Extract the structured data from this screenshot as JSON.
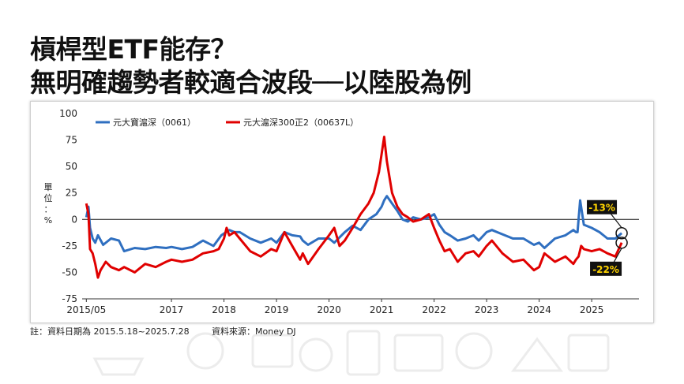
{
  "title_line1": "槓桿型ETF能存？",
  "title_line2": "無明確趨勢者較適合波段──以陸股為例",
  "notes": {
    "date_range": "註：資料日期為 2015.5.18~2025.7.28",
    "source": "資料來源：Money DJ"
  },
  "colors": {
    "series1": "#2f6fc0",
    "series2": "#e00000",
    "callout_bg": "#111111",
    "callout_text": "#ffd400"
  },
  "callouts": {
    "blue": "-13%",
    "red": "-22%"
  },
  "chart_data": {
    "type": "line",
    "ylabel": "單位：%",
    "ylim": [
      -75,
      100
    ],
    "yticks": [
      100,
      75,
      50,
      25,
      0,
      -25,
      -50,
      -75
    ],
    "xlim": [
      2015.3,
      2025.9
    ],
    "xticks": [
      {
        "value": 2015.38,
        "label": "2015/05"
      },
      {
        "value": 2017.0,
        "label": "2017"
      },
      {
        "value": 2018.0,
        "label": "2018"
      },
      {
        "value": 2019.0,
        "label": "2019"
      },
      {
        "value": 2020.0,
        "label": "2020"
      },
      {
        "value": 2021.0,
        "label": "2021"
      },
      {
        "value": 2022.0,
        "label": "2022"
      },
      {
        "value": 2023.0,
        "label": "2023"
      },
      {
        "value": 2024.0,
        "label": "2024"
      },
      {
        "value": 2025.0,
        "label": "2025"
      }
    ],
    "zero_line": true,
    "legend": "top-left",
    "series": [
      {
        "name": "元大寶滬深（0061）",
        "color": "#2f6fc0",
        "x": [
          2015.38,
          2015.42,
          2015.45,
          2015.5,
          2015.55,
          2015.6,
          2015.7,
          2015.85,
          2016.0,
          2016.1,
          2016.3,
          2016.5,
          2016.7,
          2016.9,
          2017.0,
          2017.2,
          2017.4,
          2017.6,
          2017.8,
          2017.95,
          2018.1,
          2018.2,
          2018.3,
          2018.5,
          2018.7,
          2018.9,
          2019.0,
          2019.15,
          2019.3,
          2019.45,
          2019.5,
          2019.6,
          2019.8,
          2020.0,
          2020.1,
          2020.2,
          2020.3,
          2020.45,
          2020.6,
          2020.75,
          2020.9,
          2021.0,
          2021.05,
          2021.1,
          2021.2,
          2021.3,
          2021.4,
          2021.5,
          2021.6,
          2021.75,
          2021.9,
          2022.0,
          2022.1,
          2022.2,
          2022.3,
          2022.45,
          2022.6,
          2022.75,
          2022.85,
          2023.0,
          2023.1,
          2023.3,
          2023.5,
          2023.7,
          2023.9,
          2024.0,
          2024.1,
          2024.3,
          2024.5,
          2024.65,
          2024.7,
          2024.73,
          2024.78,
          2024.85,
          2025.0,
          2025.15,
          2025.3,
          2025.45,
          2025.57
        ],
        "values": [
          2,
          12,
          -8,
          -18,
          -22,
          -15,
          -24,
          -18,
          -20,
          -30,
          -27,
          -28,
          -26,
          -27,
          -26,
          -28,
          -26,
          -20,
          -25,
          -15,
          -10,
          -12,
          -12,
          -18,
          -22,
          -18,
          -22,
          -12,
          -15,
          -16,
          -20,
          -24,
          -18,
          -18,
          -22,
          -17,
          -12,
          -6,
          -10,
          0,
          5,
          12,
          18,
          22,
          15,
          8,
          0,
          -2,
          2,
          0,
          2,
          5,
          -5,
          -12,
          -15,
          -20,
          -18,
          -15,
          -20,
          -12,
          -10,
          -14,
          -18,
          -18,
          -24,
          -22,
          -27,
          -18,
          -15,
          -10,
          -12,
          -12,
          18,
          -5,
          -8,
          -12,
          -18,
          -18,
          -13
        ]
      },
      {
        "name": "元大滬深300正2（00637L）",
        "color": "#e00000",
        "x": [
          2015.38,
          2015.42,
          2015.45,
          2015.5,
          2015.55,
          2015.6,
          2015.65,
          2015.75,
          2015.85,
          2016.0,
          2016.1,
          2016.3,
          2016.5,
          2016.7,
          2016.9,
          2017.0,
          2017.2,
          2017.4,
          2017.6,
          2017.8,
          2017.9,
          2018.0,
          2018.05,
          2018.1,
          2018.2,
          2018.3,
          2018.5,
          2018.7,
          2018.9,
          2019.0,
          2019.15,
          2019.3,
          2019.45,
          2019.5,
          2019.6,
          2019.8,
          2020.0,
          2020.1,
          2020.2,
          2020.3,
          2020.45,
          2020.6,
          2020.75,
          2020.85,
          2020.95,
          2021.05,
          2021.1,
          2021.15,
          2021.2,
          2021.3,
          2021.4,
          2021.5,
          2021.6,
          2021.75,
          2021.9,
          2022.0,
          2022.1,
          2022.2,
          2022.3,
          2022.45,
          2022.6,
          2022.75,
          2022.85,
          2023.0,
          2023.1,
          2023.3,
          2023.5,
          2023.7,
          2023.9,
          2024.0,
          2024.1,
          2024.3,
          2024.5,
          2024.65,
          2024.7,
          2024.75,
          2024.8,
          2024.85,
          2025.0,
          2025.15,
          2025.3,
          2025.45,
          2025.57
        ],
        "values": [
          15,
          5,
          -28,
          -32,
          -42,
          -55,
          -48,
          -40,
          -45,
          -48,
          -45,
          -50,
          -42,
          -45,
          -40,
          -38,
          -40,
          -38,
          -32,
          -30,
          -28,
          -18,
          -8,
          -15,
          -12,
          -18,
          -30,
          -35,
          -28,
          -30,
          -12,
          -25,
          -38,
          -32,
          -42,
          -28,
          -15,
          -8,
          -25,
          -20,
          -8,
          5,
          15,
          25,
          45,
          78,
          55,
          40,
          25,
          12,
          5,
          2,
          -2,
          0,
          5,
          -8,
          -20,
          -30,
          -28,
          -40,
          -32,
          -30,
          -35,
          -25,
          -20,
          -32,
          -40,
          -38,
          -48,
          -45,
          -32,
          -40,
          -35,
          -42,
          -38,
          -35,
          -25,
          -28,
          -30,
          -28,
          -32,
          -35,
          -22
        ]
      }
    ]
  }
}
